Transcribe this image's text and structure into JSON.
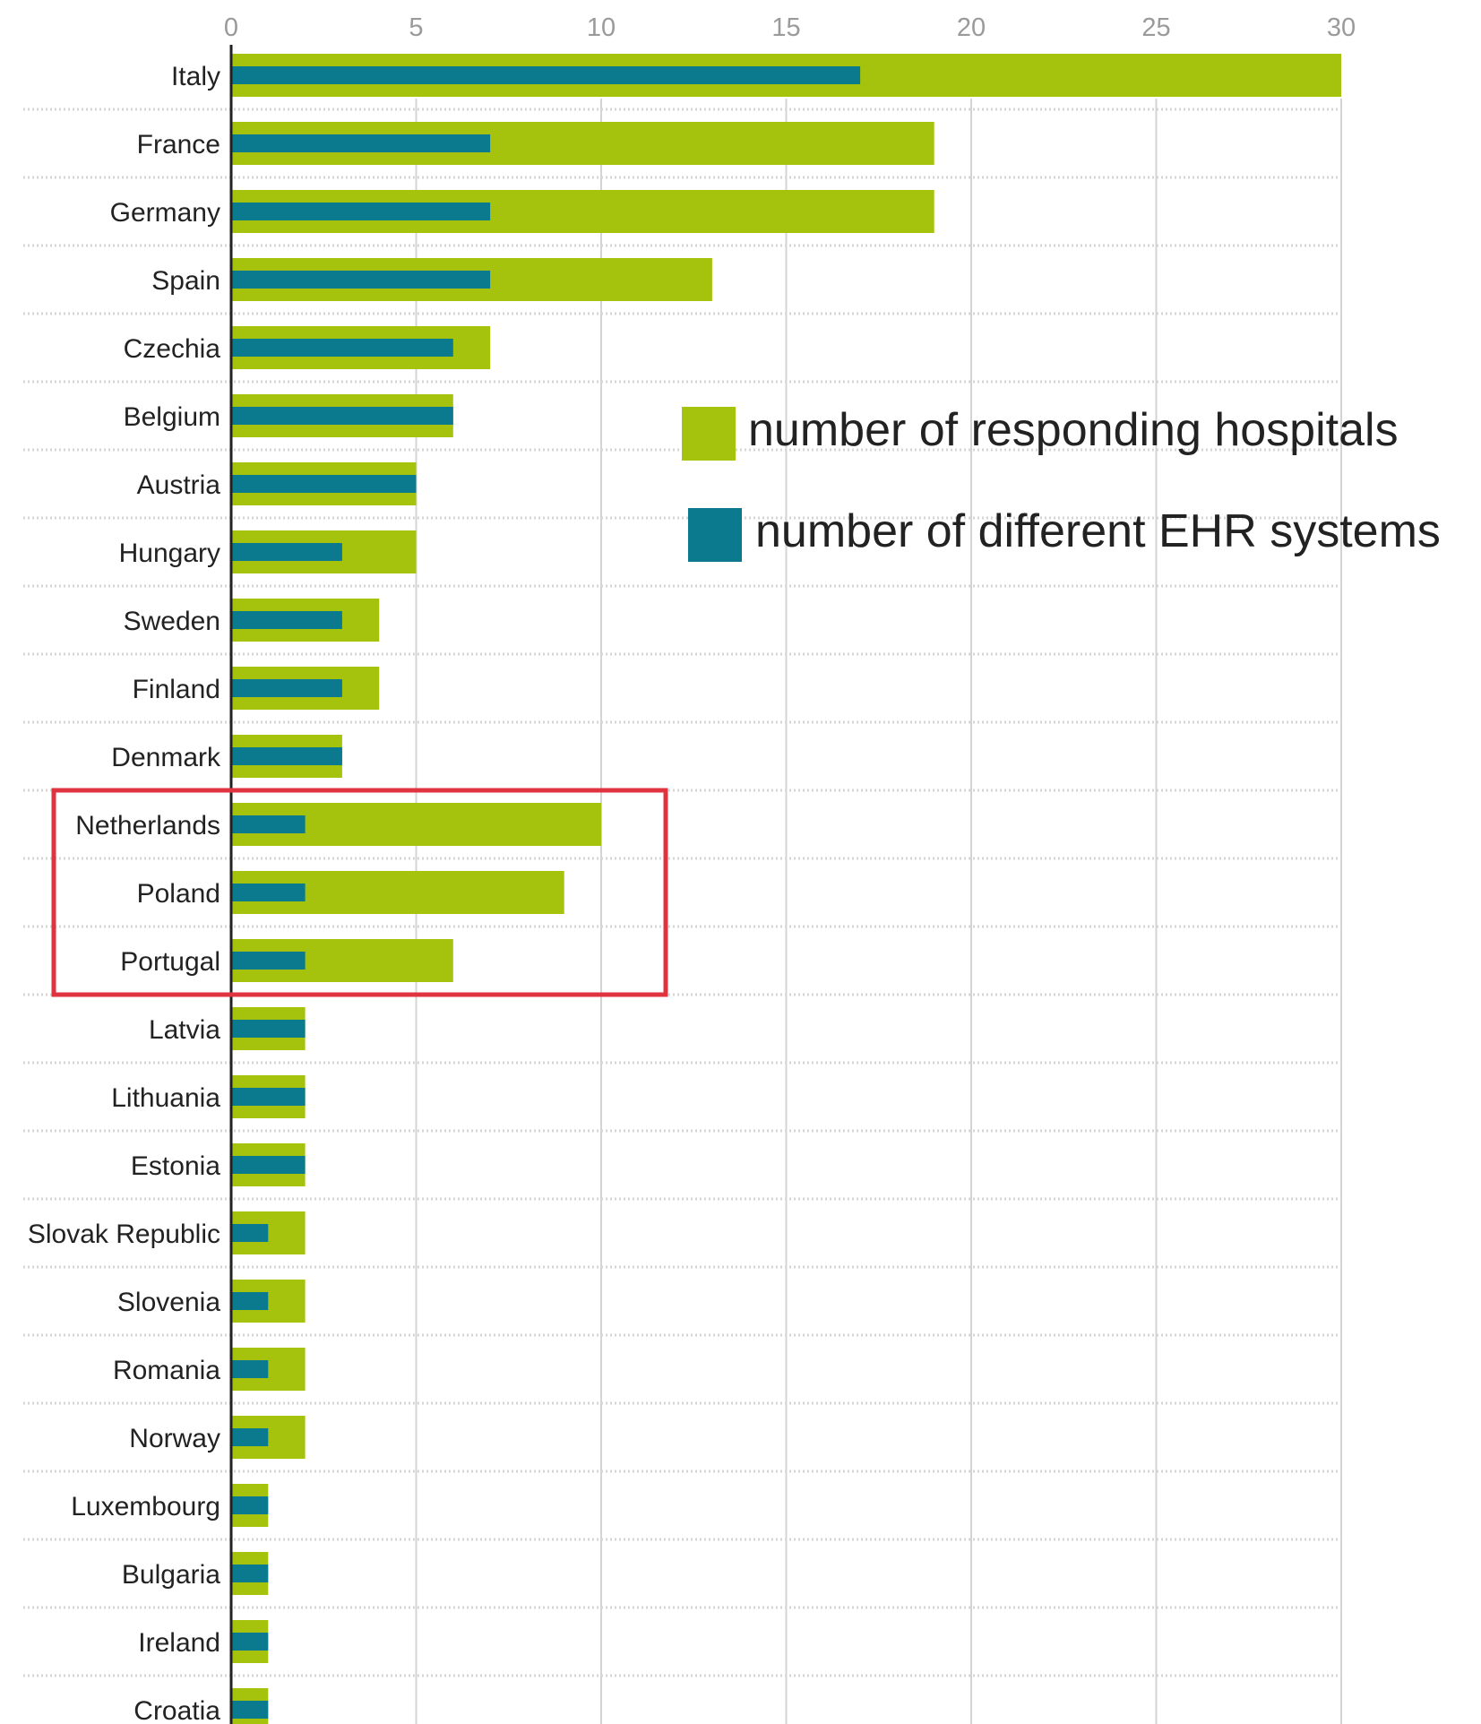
{
  "chart_data": {
    "type": "bar",
    "orientation": "horizontal",
    "categories": [
      "Italy",
      "France",
      "Germany",
      "Spain",
      "Czechia",
      "Belgium",
      "Austria",
      "Hungary",
      "Sweden",
      "Finland",
      "Denmark",
      "Netherlands",
      "Poland",
      "Portugal",
      "Latvia",
      "Lithuania",
      "Estonia",
      "Slovak Republic",
      "Slovenia",
      "Romania",
      "Norway",
      "Luxembourg",
      "Bulgaria",
      "Ireland",
      "Croatia"
    ],
    "series": [
      {
        "name": "number of responding hospitals",
        "color": "#a5c30c",
        "values": [
          30,
          19,
          19,
          13,
          7,
          6,
          5,
          5,
          4,
          4,
          3,
          10,
          9,
          6,
          2,
          2,
          2,
          2,
          2,
          2,
          2,
          1,
          1,
          1,
          1
        ]
      },
      {
        "name": "number of different EHR systems",
        "color": "#0b7a8e",
        "values": [
          17,
          7,
          7,
          7,
          6,
          6,
          5,
          3,
          3,
          3,
          3,
          2,
          2,
          2,
          2,
          2,
          2,
          1,
          1,
          1,
          1,
          1,
          1,
          1,
          1
        ]
      }
    ],
    "x_axis": {
      "position": "top",
      "range": [
        0,
        30
      ],
      "ticks": [
        "0",
        "5",
        "10",
        "15",
        "20",
        "25",
        "30"
      ]
    },
    "grid": true,
    "legend_position": "right",
    "highlight": {
      "categories": [
        "Netherlands",
        "Poland",
        "Portugal"
      ],
      "color": "#e03340"
    },
    "title": "",
    "xlabel": "",
    "ylabel": ""
  }
}
